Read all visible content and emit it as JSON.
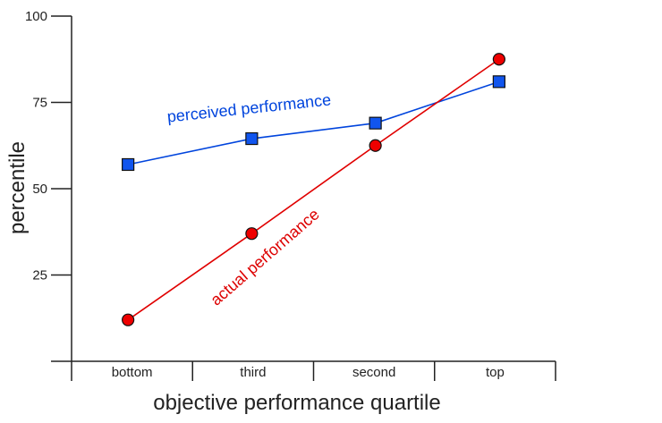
{
  "chart_data": {
    "type": "line",
    "title": "",
    "xlabel": "objective performance quartile",
    "ylabel": "percentile",
    "categories": [
      "bottom",
      "third",
      "second",
      "top"
    ],
    "ylim": [
      0,
      100
    ],
    "yticks": [
      25,
      50,
      75,
      100
    ],
    "grid": false,
    "series": [
      {
        "name": "perceived performance",
        "marker": "square",
        "color": "#0044dd",
        "marker_fill": "#1155ee",
        "values": [
          57,
          64.5,
          69,
          81
        ]
      },
      {
        "name": "actual performance",
        "marker": "circle",
        "color": "#e00000",
        "marker_fill": "#ee0000",
        "values": [
          12,
          37,
          62.5,
          87.5
        ]
      }
    ]
  }
}
